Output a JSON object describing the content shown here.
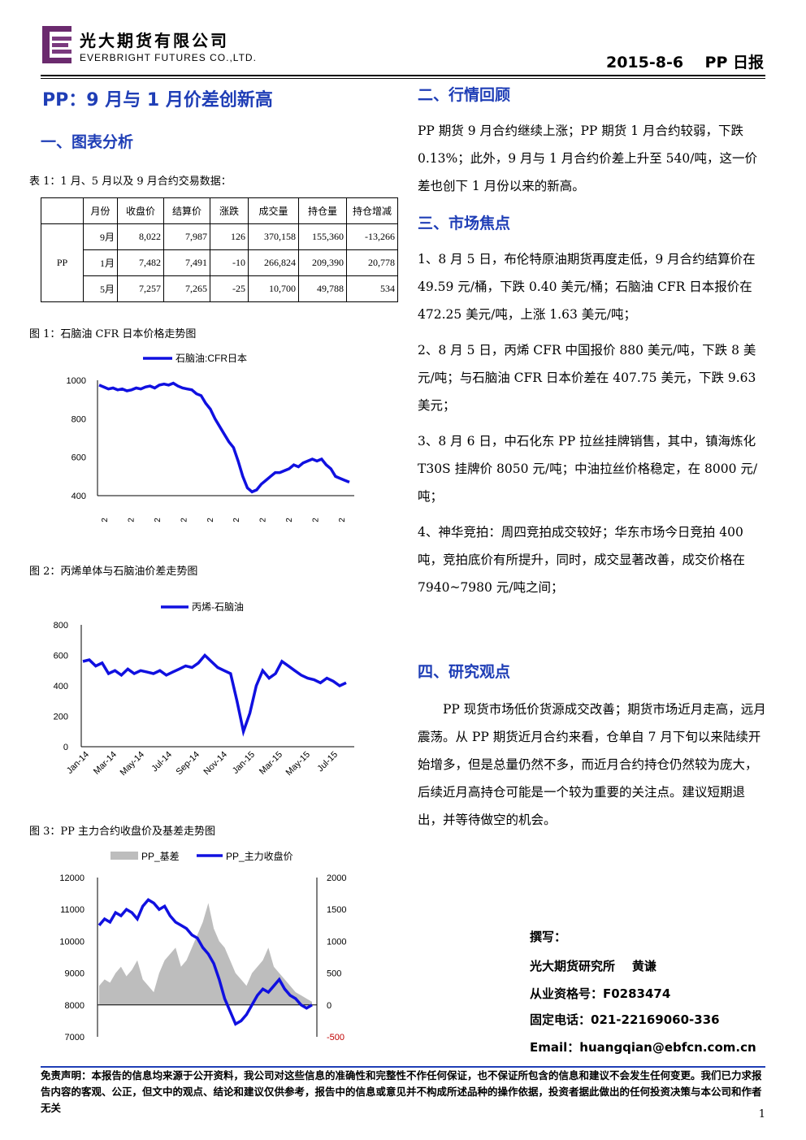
{
  "header": {
    "company_cn": "光大期货有限公司",
    "company_en": "EVERBRIGHT FUTURES CO.,LTD.",
    "date_title": "2015-8-6    PP 日报"
  },
  "main_title": "PP：9 月与 1 月价差创新高",
  "sections": {
    "analysis": "一、图表分析",
    "review": "二、行情回顾",
    "focus": "三、市场焦点",
    "opinion": "四、研究观点"
  },
  "table": {
    "caption": "表 1：1 月、5 月以及 9 月合约交易数据：",
    "headers": [
      "月份",
      "收盘价",
      "结算价",
      "涨跌",
      "成交量",
      "持仓量",
      "持仓增减"
    ],
    "group_label": "PP",
    "rows": [
      [
        "9月",
        "8,022",
        "7,987",
        "126",
        "370,158",
        "155,360",
        "-13,266"
      ],
      [
        "1月",
        "7,482",
        "7,491",
        "-10",
        "266,824",
        "209,390",
        "20,778"
      ],
      [
        "5月",
        "7,257",
        "7,265",
        "-25",
        "10,700",
        "49,788",
        "534"
      ]
    ]
  },
  "captions": {
    "fig1": "图 1：石脑油 CFR 日本价格走势图",
    "fig2": "图 2：丙烯单体与石脑油价差走势图",
    "fig3": "图 3：PP 主力合约收盘价及基差走势图"
  },
  "chart_data": [
    {
      "type": "line",
      "series": [
        {
          "name": "石脑油:CFR日本",
          "color": "#1010e0"
        }
      ],
      "ylim": [
        400,
        1000
      ],
      "yticks": [
        "1000",
        "800",
        "600",
        "400"
      ],
      "xticks_truncated": [
        "2",
        "2",
        "2",
        "2",
        "2",
        "2",
        "2",
        "2",
        "2",
        "2"
      ],
      "values": [
        975,
        965,
        955,
        960,
        950,
        955,
        945,
        950,
        960,
        955,
        965,
        970,
        960,
        975,
        980,
        975,
        985,
        970,
        960,
        955,
        950,
        930,
        920,
        880,
        850,
        800,
        760,
        720,
        680,
        650,
        580,
        500,
        440,
        420,
        430,
        460,
        480,
        500,
        520,
        520,
        530,
        540,
        560,
        550,
        570,
        580,
        590,
        580,
        590,
        560,
        540,
        500,
        490,
        480,
        470
      ]
    },
    {
      "type": "line",
      "series": [
        {
          "name": "丙烯-石脑油",
          "color": "#1010e0"
        }
      ],
      "ylim": [
        0,
        800
      ],
      "yticks": [
        "800",
        "600",
        "400",
        "200",
        "0"
      ],
      "xticks": [
        "Jan-14",
        "Mar-14",
        "May-14",
        "Jul-14",
        "Sep-14",
        "Nov-14",
        "Jan-15",
        "Mar-15",
        "May-15",
        "Jul-15"
      ],
      "values": [
        560,
        570,
        530,
        550,
        480,
        500,
        470,
        510,
        480,
        500,
        490,
        480,
        500,
        470,
        490,
        510,
        530,
        520,
        550,
        600,
        560,
        520,
        500,
        480,
        300,
        100,
        220,
        400,
        500,
        450,
        480,
        560,
        530,
        500,
        470,
        450,
        440,
        420,
        450,
        430,
        400,
        420
      ]
    },
    {
      "type": "area",
      "series": [
        {
          "name": "PP_基差",
          "color": "#bdbdbd",
          "axis": "right"
        },
        {
          "name": "PP_主力收盘价",
          "color": "#1010e0",
          "axis": "left"
        }
      ],
      "ylim_left": [
        7000,
        12000
      ],
      "ylim_right": [
        -500,
        2000
      ],
      "yticks_left": [
        "12000",
        "11000",
        "10000",
        "9000",
        "8000",
        "7000"
      ],
      "yticks_right": [
        "2000",
        "1500",
        "1000",
        "500",
        "0",
        "-500"
      ],
      "price": [
        10500,
        10700,
        10600,
        10900,
        10800,
        11000,
        10900,
        10700,
        11100,
        11300,
        11200,
        11000,
        11100,
        10800,
        10600,
        10500,
        10400,
        10200,
        10100,
        9800,
        9600,
        9300,
        8800,
        8200,
        7800,
        7400,
        7500,
        7700,
        8000,
        8300,
        8500,
        8400,
        8600,
        8800,
        8500,
        8300,
        8200,
        8000,
        7900,
        8000
      ],
      "basis": [
        300,
        400,
        350,
        500,
        600,
        450,
        550,
        700,
        400,
        300,
        200,
        500,
        700,
        800,
        900,
        600,
        700,
        900,
        1100,
        1300,
        1600,
        1200,
        1000,
        900,
        700,
        500,
        400,
        300,
        500,
        600,
        700,
        900,
        600,
        500,
        400,
        300,
        200,
        150,
        100,
        50
      ]
    }
  ],
  "review_text": "PP 期货 9 月合约继续上涨；PP 期货 1 月合约较弱，下跌 0.13%；此外，9 月与 1 月合约价差上升至 540/吨，这一价差也创下 1 月份以来的新高。",
  "focus_items": [
    "1、8 月 5 日，布伦特原油期货再度走低，9 月合约结算价在 49.59 元/桶，下跌 0.40 美元/桶；石脑油 CFR 日本报价在 472.25 美元/吨，上涨 1.63 美元/吨；",
    "2、8 月 5 日，丙烯 CFR 中国报价 880 美元/吨，下跌 8 美元/吨；与石脑油 CFR 日本价差在 407.75 美元，下跌 9.63 美元；",
    "3、8 月 6 日，中石化东 PP 拉丝挂牌销售，其中，镇海炼化 T30S 挂牌价 8050 元/吨；中油拉丝价格稳定，在 8000 元/吨；",
    "4、神华竞拍：周四竞拍成交较好；华东市场今日竞拍 400 吨，竞拍底价有所提升，同时，成交显著改善，成交价格在 7940~7980 元/吨之间；"
  ],
  "opinion_text": "PP 现货市场低价货源成交改善；期货市场近月走高，远月震荡。从 PP 期货近月合约来看，仓单自 7 月下旬以来陆续开始增多，但是总量仍然不多，而近月合约持仓仍然较为庞大，后续近月高持仓可能是一个较为重要的关注点。建议短期退出，并等待做空的机会。",
  "author": {
    "label": "撰写：",
    "org": "光大期货研究所    黄谦",
    "license": "从业资格号：F0283474",
    "phone": "固定电话：021-22169060-336",
    "email": "Email：huangqian@ebfcn.com.cn"
  },
  "disclaimer": "免责声明：本报告的信息均来源于公开资料，我公司对这些信息的准确性和完整性不作任何保证，也不保证所包含的信息和建议不会发生任何变更。我们已力求报告内容的客观、公正，但文中的观点、结论和建议仅供参考，报告中的信息或意见并不构成所述品种的操作依据，投资者据此做出的任何投资决策与本公司和作者无关",
  "page_number": "1"
}
